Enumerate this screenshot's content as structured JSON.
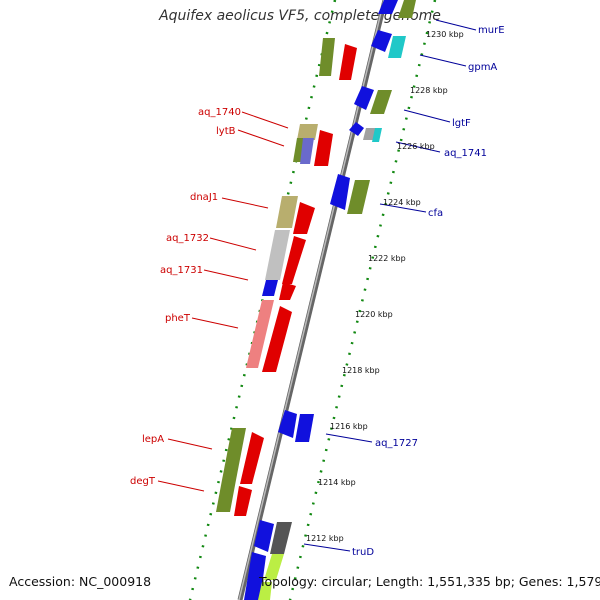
{
  "title": "Aquifex aeolicus VF5, complete genome",
  "accession": "Accession: NC_000918",
  "summary": "Topology: circular; Length: 1,551,335 bp; Genes: 1,579",
  "colors": {
    "reverse_label": "#cc0000",
    "forward_label": "#000099",
    "backbone": "#888888",
    "tick_dots": "#118811"
  },
  "scale_labels": [
    "1230 kbp",
    "1228 kbp",
    "1226 kbp",
    "1224 kbp",
    "1222 kbp",
    "1220 kbp",
    "1218 kbp",
    "1216 kbp",
    "1214 kbp",
    "1212 kbp"
  ],
  "left_labels": [
    "aq_1740",
    "lytB",
    "dnaJ1",
    "aq_1732",
    "aq_1731",
    "pheT",
    "lepA",
    "degT"
  ],
  "right_labels": [
    "murE",
    "gpmA",
    "lgtF",
    "aq_1741",
    "cfa",
    "aq_1727",
    "truD"
  ]
}
